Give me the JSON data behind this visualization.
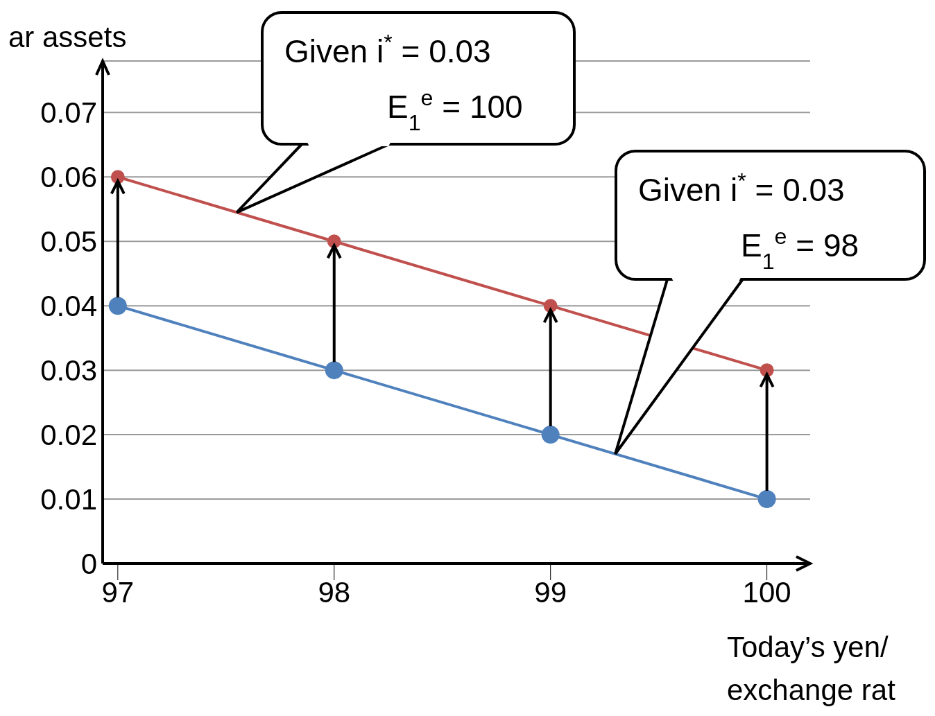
{
  "chart_data": {
    "type": "line",
    "xlabel": "Today’s yen/\nexchange rat",
    "ylabel": "ar assets",
    "x": [
      97,
      98,
      99,
      100
    ],
    "xlim": [
      96.93,
      100.2
    ],
    "xticks": [
      97,
      98,
      99,
      100
    ],
    "ylim": [
      0,
      0.078
    ],
    "yticks": [
      0,
      0.01,
      0.02,
      0.03,
      0.04,
      0.05,
      0.06,
      0.07
    ],
    "grid": "y",
    "marker": "circle",
    "series": [
      {
        "color": "#c0504d",
        "values": [
          0.06,
          0.05,
          0.04,
          0.03
        ]
      },
      {
        "color": "#4f81bd",
        "values": [
          0.04,
          0.03,
          0.02,
          0.01
        ]
      }
    ],
    "annotations": [
      {
        "text": "Given i$^{*}$ = 0.03\nE$_{1}$$^{e}$ = 100",
        "x": 97.55,
        "y": 0.0545
      },
      "Given i$^{*}$ = 0.03\nE$_{1}$$^{e}$ = 98"
    ]
  }
}
